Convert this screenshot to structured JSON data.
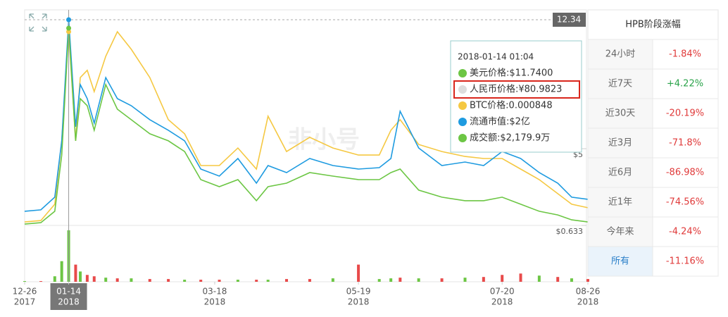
{
  "chart_data": {
    "type": "line",
    "x": [
      "2017-12-26",
      "2018-01-02",
      "2018-01-08",
      "2018-01-11",
      "2018-01-14",
      "2018-01-17",
      "2018-01-19",
      "2018-01-22",
      "2018-01-25",
      "2018-01-30",
      "2018-02-04",
      "2018-02-10",
      "2018-02-18",
      "2018-02-26",
      "2018-03-05",
      "2018-03-12",
      "2018-03-20",
      "2018-03-28",
      "2018-04-05",
      "2018-04-10",
      "2018-04-18",
      "2018-04-28",
      "2018-05-08",
      "2018-05-19",
      "2018-05-28",
      "2018-06-02",
      "2018-06-06",
      "2018-06-14",
      "2018-06-24",
      "2018-07-04",
      "2018-07-12",
      "2018-07-20",
      "2018-07-28",
      "2018-08-05",
      "2018-08-13",
      "2018-08-19",
      "2018-08-26"
    ],
    "xlim": [
      "2017-12-26",
      "2018-08-26"
    ],
    "xticks": [
      {
        "value": "2017-12-26",
        "label": [
          "12-26",
          "2017"
        ]
      },
      {
        "value": "2018-01-14",
        "label": [
          "01-14",
          "2018"
        ]
      },
      {
        "value": "2018-03-18",
        "label": [
          "03-18",
          "2018"
        ]
      },
      {
        "value": "2018-05-19",
        "label": [
          "05-19",
          "2018"
        ]
      },
      {
        "value": "2018-07-20",
        "label": [
          "07-20",
          "2018"
        ]
      },
      {
        "value": "2018-08-26",
        "label": [
          "08-26",
          "2018"
        ]
      }
    ],
    "ylim": [
      0.633,
      12.34
    ],
    "yticks": [
      {
        "value": 5,
        "label": "$5"
      },
      {
        "value": 0.633,
        "label": "$0.633"
      }
    ],
    "series": [
      {
        "color": "#f5c842",
        "values": [
          0.83,
          0.91,
          1.84,
          5.45,
          11.66,
          5.45,
          9.05,
          9.46,
          8.25,
          10.26,
          11.66,
          10.66,
          9.05,
          6.65,
          5.85,
          4.04,
          4.04,
          5.04,
          3.84,
          6.85,
          4.84,
          5.65,
          5.04,
          4.64,
          4.64,
          6.05,
          6.65,
          5.24,
          4.84,
          4.56,
          4.44,
          4.44,
          3.84,
          3.24,
          2.44,
          1.84,
          1.64
        ]
      },
      {
        "color": "#1e9be0",
        "values": [
          1.44,
          1.52,
          2.24,
          5.45,
          12.34,
          6.25,
          8.65,
          7.85,
          6.45,
          9.05,
          7.85,
          7.45,
          6.65,
          6.05,
          5.45,
          3.84,
          3.44,
          4.44,
          3.04,
          4.04,
          3.64,
          4.44,
          4.04,
          3.84,
          3.92,
          4.44,
          7.13,
          5.04,
          4.04,
          4.24,
          4.04,
          4.84,
          4.44,
          3.64,
          3.04,
          2.24,
          2.12
        ]
      },
      {
        "color": "#6cc644",
        "values": [
          0.71,
          0.79,
          1.44,
          4.64,
          11.86,
          5.45,
          7.85,
          7.45,
          6.05,
          8.65,
          7.25,
          6.65,
          5.85,
          5.45,
          4.84,
          3.24,
          2.84,
          3.24,
          2.04,
          2.84,
          3.04,
          3.64,
          3.44,
          3.24,
          3.24,
          3.64,
          3.84,
          2.64,
          2.24,
          2.04,
          2.04,
          2.24,
          1.84,
          1.44,
          1.23,
          0.95,
          0.83
        ]
      }
    ],
    "crosshair": {
      "x": "2018-01-14",
      "value": 12.34
    },
    "volume": {
      "ylim": [
        0,
        80
      ],
      "values": [
        1,
        1,
        8,
        30,
        75,
        25,
        15,
        10,
        8,
        6,
        5,
        5,
        4,
        4,
        3,
        3,
        3,
        3,
        3,
        3,
        4,
        4,
        5,
        25,
        4,
        5,
        6,
        5,
        5,
        6,
        7,
        10,
        12,
        9,
        7,
        5,
        4
      ],
      "colors": [
        "#6cc644",
        "#e84a4a",
        "#6cc644",
        "#6cc644",
        "#6cc644",
        "#e84a4a",
        "#6cc644",
        "#e84a4a",
        "#e84a4a",
        "#6cc644",
        "#e84a4a",
        "#6cc644",
        "#e84a4a",
        "#e84a4a",
        "#6cc644",
        "#e84a4a",
        "#e84a4a",
        "#6cc644",
        "#e84a4a",
        "#6cc644",
        "#e84a4a",
        "#e84a4a",
        "#6cc644",
        "#e84a4a",
        "#6cc644",
        "#6cc644",
        "#e84a4a",
        "#6cc644",
        "#e84a4a",
        "#6cc644",
        "#e84a4a",
        "#e84a4a",
        "#e84a4a",
        "#6cc644",
        "#e84a4a",
        "#6cc644",
        "#e84a4a"
      ]
    },
    "watermark": "非小号",
    "tooltip": {
      "date": "2018-01-14 01:04",
      "highlight": 1,
      "items": [
        {
          "text": "美元价格:$11.7400",
          "color": "#6cc644"
        },
        {
          "text": "人民币价格:¥80.9823",
          "color": "#dddddd"
        },
        {
          "text": "BTC价格:0.000848",
          "color": "#f5c842"
        },
        {
          "text": "流通市值:$2亿",
          "color": "#1e9be0"
        },
        {
          "text": "成交额:$2,179.9万",
          "color": "#6cc644"
        }
      ]
    }
  },
  "table": {
    "title": "HPB阶段涨幅",
    "active": 7,
    "rows": [
      [
        "24小时",
        "-1.84%"
      ],
      [
        "近7天",
        "+4.22%"
      ],
      [
        "近30天",
        "-20.19%"
      ],
      [
        "近3月",
        "-71.8%"
      ],
      [
        "近6月",
        "-86.98%"
      ],
      [
        "近1年",
        "-74.56%"
      ],
      [
        "今年来",
        "-4.24%"
      ],
      [
        "所有",
        "-11.16%"
      ]
    ]
  }
}
